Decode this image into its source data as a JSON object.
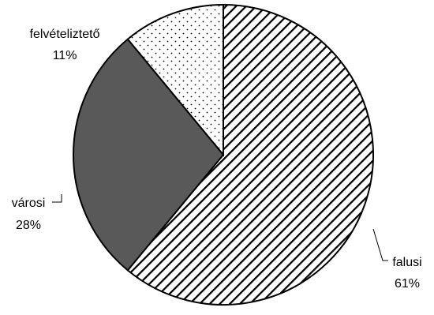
{
  "chart_data": {
    "type": "pie",
    "title": "",
    "slices": [
      {
        "label": "falusi",
        "value": 61,
        "value_label": "61%",
        "fill": "hatch"
      },
      {
        "label": "városi",
        "value": 28,
        "value_label": "28%",
        "fill": "#595959"
      },
      {
        "label": "felvételiztető",
        "value": 11,
        "value_label": "11%",
        "fill": "dots"
      }
    ],
    "start": "top",
    "direction": "clockwise"
  }
}
